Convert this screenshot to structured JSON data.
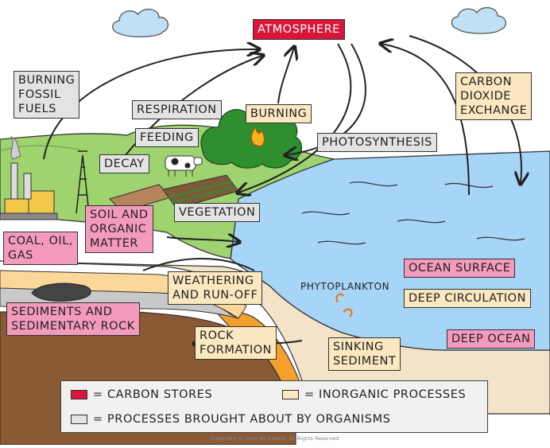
{
  "title": "ATMOSPHERE",
  "labels": {
    "burning_fossil_fuels": "BURNING\nFOSSIL\nFUELS",
    "respiration": "RESPIRATION",
    "burning": "BURNING",
    "feeding": "FEEDING",
    "decay": "DECAY",
    "photosynthesis": "PHOTOSYNTHESIS",
    "carbon_dioxide_exchange": "CARBON\nDIOXIDE\nEXCHANGE",
    "soil_and_organic_matter": "SOIL AND\nORGANIC\nMATTER",
    "vegetation": "VEGETATION",
    "coal_oil_gas": "COAL, OIL,\nGAS",
    "ocean_surface": "OCEAN SURFACE",
    "phytoplankton": "PHYTOPLANKTON",
    "weathering_and_run_off": "WEATHERING\nAND RUN-OFF",
    "deep_circulation": "DEEP CIRCULATION",
    "sediments_and_sedimentary_rock": "SEDIMENTS AND\nSEDIMENTARY ROCK",
    "rock_formation": "ROCK\nFORMATION",
    "sinking_sediment": "SINKING\nSEDIMENT",
    "deep_ocean": "DEEP OCEAN"
  },
  "legend": {
    "carbon_stores": "= CARBON STORES",
    "inorganic_processes": "= INORGANIC PROCESSES",
    "processes_by_organisms": "= PROCESSES BROUGHT ABOUT BY ORGANISMS"
  },
  "colors": {
    "carbon_store": "#f49bbd",
    "atmosphere": "#d9153a",
    "inorganic_process": "#fbe7c0",
    "organism_process": "#e3e3e3",
    "ocean": "#a6d5f7",
    "land": "#9fd36f"
  },
  "copyright": "Copyright © Save My Exams. All Rights Reserved"
}
